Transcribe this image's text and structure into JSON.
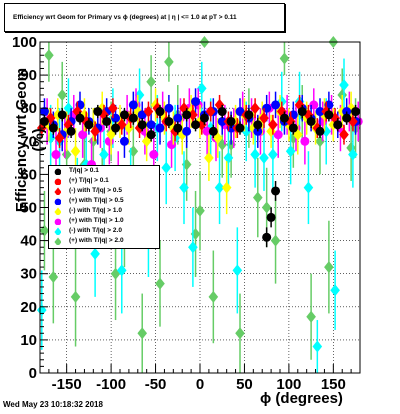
{
  "title": "Efficiency wrt Geom for Primary vs ϕ (degrees) at | η | <= 1.0 at pT > 0.11",
  "timestamp": "Wed May 23 10:18:32 2018",
  "chart_data": {
    "type": "scatter",
    "xlabel": "ϕ (degrees)",
    "ylabel": "Efficiency wrt Geom (%)",
    "xlim": [
      -180,
      180
    ],
    "ylim": [
      0,
      100
    ],
    "x_ticks": [
      "-150",
      "-100",
      "-50",
      "0",
      "50",
      "100",
      "150"
    ],
    "y_ticks": [
      "0",
      "10",
      "20",
      "30",
      "40",
      "50",
      "60",
      "70",
      "80",
      "90",
      "100"
    ],
    "grid": true,
    "legend": [
      {
        "label": "T/|q| > 0.1",
        "color": "#000000",
        "marker": "circle"
      },
      {
        "label": "(+) T/|q| > 0.1",
        "color": "#ff0000",
        "marker": "circle"
      },
      {
        "label": "(-) with T/|q| > 0.5",
        "color": "#ff0000",
        "marker": "diamond"
      },
      {
        "label": "(+) with T/|q| > 0.5",
        "color": "#0000ff",
        "marker": "circle"
      },
      {
        "label": "(-) with T/|q| > 1.0",
        "color": "#ffff00",
        "marker": "diamond"
      },
      {
        "label": "(+) with T/|q| > 1.0",
        "color": "#ff00ff",
        "marker": "circle"
      },
      {
        "label": "(-) with T/|q| > 2.0",
        "color": "#00ffff",
        "marker": "diamond"
      },
      {
        "label": "(+) with T/|q| > 2.0",
        "color": "#66cc66",
        "marker": "diamond"
      }
    ],
    "series": [
      {
        "color": "#66cc66",
        "marker": "diamond",
        "x": [
          -175,
          -170,
          -165,
          -155,
          -150,
          -140,
          -130,
          -120,
          -110,
          -100,
          -95,
          -85,
          -75,
          -65,
          -55,
          -45,
          -35,
          -25,
          -15,
          -5,
          0,
          5,
          15,
          25,
          35,
          45,
          55,
          65,
          75,
          85,
          95,
          105,
          115,
          125,
          135,
          145,
          150,
          160,
          170,
          175
        ],
        "y": [
          43,
          96,
          29,
          84,
          66,
          23,
          63,
          70,
          55,
          73,
          30,
          44,
          67,
          12,
          88,
          27,
          94,
          78,
          63,
          42,
          49,
          100,
          23,
          69,
          69,
          12,
          77,
          53,
          50,
          40,
          95,
          71,
          78,
          17,
          70,
          32,
          100,
          84,
          68,
          74
        ],
        "err": [
          12,
          8,
          14,
          10,
          11,
          15,
          11,
          10,
          13,
          9,
          14,
          12,
          10,
          12,
          8,
          13,
          6,
          9,
          11,
          13,
          12,
          0,
          14,
          10,
          10,
          12,
          9,
          12,
          12,
          13,
          5,
          9,
          9,
          13,
          10,
          14,
          0,
          8,
          10,
          9
        ]
      },
      {
        "color": "#00ffff",
        "marker": "diamond",
        "x": [
          -178,
          -168,
          -158,
          -148,
          -138,
          -128,
          -118,
          -108,
          -98,
          -88,
          -78,
          -68,
          -58,
          -48,
          -38,
          -28,
          -18,
          -8,
          2,
          12,
          22,
          32,
          42,
          52,
          62,
          72,
          82,
          92,
          102,
          112,
          122,
          132,
          142,
          152,
          162,
          172
        ],
        "y": [
          19,
          71,
          70,
          80,
          53,
          63,
          36,
          66,
          77,
          31,
          57,
          84,
          41,
          74,
          62,
          71,
          56,
          38,
          86,
          74,
          56,
          65,
          31,
          73,
          66,
          65,
          66,
          82,
          67,
          82,
          56,
          8,
          73,
          25,
          87,
          66
        ],
        "err": [
          12,
          10,
          10,
          9,
          12,
          11,
          13,
          11,
          9,
          13,
          11,
          8,
          12,
          10,
          11,
          10,
          11,
          12,
          8,
          9,
          11,
          10,
          13,
          9,
          10,
          10,
          10,
          9,
          10,
          9,
          11,
          8,
          10,
          12,
          8,
          10
        ]
      },
      {
        "color": "#ff00ff",
        "marker": "circle",
        "x": [
          -172,
          -162,
          -152,
          -142,
          -132,
          -122,
          -112,
          -102,
          -92,
          -82,
          -72,
          -62,
          -52,
          -42,
          -32,
          -22,
          -12,
          -2,
          8,
          18,
          28,
          38,
          48,
          58,
          68,
          78,
          88,
          98,
          108,
          118,
          128,
          138,
          148,
          158,
          168,
          178
        ],
        "y": [
          76,
          66,
          72,
          78,
          72,
          63,
          74,
          70,
          59,
          78,
          81,
          73,
          66,
          79,
          69,
          77,
          80,
          81,
          73,
          71,
          75,
          74,
          79,
          77,
          73,
          80,
          72,
          78,
          74,
          70,
          81,
          76,
          78,
          74,
          79,
          76
        ],
        "err": [
          7,
          8,
          7,
          6,
          7,
          8,
          6,
          7,
          8,
          6,
          5,
          7,
          8,
          6,
          7,
          6,
          6,
          5,
          7,
          7,
          6,
          6,
          6,
          6,
          7,
          5,
          7,
          6,
          7,
          7,
          5,
          6,
          6,
          7,
          6,
          6
        ]
      },
      {
        "color": "#ffff00",
        "marker": "diamond",
        "x": [
          -170,
          -160,
          -150,
          -140,
          -130,
          -120,
          -110,
          -100,
          -90,
          -80,
          -70,
          -60,
          -50,
          -40,
          -30,
          -20,
          -10,
          0,
          10,
          20,
          30,
          40,
          50,
          60,
          70,
          80,
          90,
          100,
          110,
          120,
          130,
          140,
          150,
          160,
          170
        ],
        "y": [
          75,
          78,
          73,
          67,
          78,
          75,
          80,
          72,
          76,
          74,
          79,
          70,
          81,
          77,
          74,
          72,
          79,
          76,
          65,
          71,
          56,
          76,
          78,
          74,
          77,
          73,
          79,
          75,
          72,
          77,
          74,
          78,
          75,
          79,
          80
        ],
        "err": [
          5,
          5,
          6,
          7,
          5,
          5,
          5,
          6,
          5,
          5,
          5,
          6,
          5,
          5,
          5,
          6,
          5,
          5,
          7,
          6,
          8,
          5,
          5,
          5,
          5,
          5,
          5,
          5,
          6,
          5,
          5,
          5,
          5,
          5,
          5
        ]
      },
      {
        "color": "#0000ff",
        "marker": "circle",
        "x": [
          -175,
          -165,
          -155,
          -145,
          -135,
          -125,
          -115,
          -105,
          -95,
          -85,
          -75,
          -65,
          -55,
          -45,
          -35,
          -25,
          -15,
          -5,
          5,
          15,
          25,
          35,
          45,
          55,
          65,
          75,
          85,
          95,
          105,
          115,
          125,
          135,
          145,
          155,
          165,
          175
        ],
        "y": [
          79,
          75,
          72,
          76,
          81,
          76,
          74,
          79,
          77,
          70,
          81,
          78,
          75,
          74,
          80,
          77,
          73,
          82,
          78,
          79,
          76,
          74,
          79,
          77,
          73,
          80,
          81,
          76,
          78,
          80,
          77,
          79,
          81,
          75,
          79,
          76
        ],
        "err": [
          4,
          4,
          5,
          4,
          4,
          4,
          5,
          4,
          4,
          5,
          4,
          4,
          4,
          5,
          4,
          4,
          5,
          4,
          4,
          4,
          4,
          5,
          4,
          4,
          5,
          4,
          4,
          4,
          4,
          4,
          4,
          4,
          4,
          4,
          4,
          4
        ]
      },
      {
        "color": "#ff0000",
        "marker": "diamond",
        "x": [
          -178,
          -168,
          -158,
          -148,
          -138,
          -128,
          -118,
          -108,
          -98,
          -88,
          -78,
          -68,
          -58,
          -48,
          -38,
          -28,
          -18,
          -8,
          2,
          12,
          22,
          32,
          42,
          52,
          62,
          72,
          82,
          92,
          102,
          112,
          122,
          132,
          142,
          152,
          162,
          172
        ],
        "y": [
          74,
          77,
          71,
          75,
          79,
          76,
          73,
          78,
          80,
          75,
          77,
          74,
          79,
          80,
          76,
          73,
          80,
          78,
          75,
          79,
          81,
          76,
          74,
          78,
          80,
          77,
          75,
          79,
          76,
          81,
          78,
          74,
          79,
          77,
          72,
          76
        ],
        "err": [
          3,
          3,
          3,
          3,
          3,
          3,
          3,
          3,
          3,
          3,
          3,
          3,
          3,
          3,
          3,
          3,
          3,
          3,
          3,
          3,
          3,
          3,
          3,
          3,
          3,
          3,
          3,
          3,
          3,
          3,
          3,
          3,
          3,
          3,
          3,
          3
        ]
      },
      {
        "color": "#000000",
        "marker": "circle",
        "x": [
          -175,
          -165,
          -155,
          -145,
          -135,
          -125,
          -115,
          -105,
          -95,
          -85,
          -75,
          -65,
          -55,
          -45,
          -35,
          -25,
          -15,
          -5,
          5,
          15,
          25,
          35,
          45,
          55,
          65,
          75,
          80,
          85,
          95,
          105,
          115,
          125,
          135,
          145,
          155,
          165,
          175
        ],
        "y": [
          76,
          74,
          78,
          73,
          77,
          75,
          79,
          76,
          74,
          78,
          77,
          75,
          72,
          79,
          76,
          74,
          78,
          75,
          77,
          73,
          79,
          76,
          74,
          78,
          75,
          41,
          47,
          55,
          77,
          74,
          79,
          76,
          73,
          78,
          75,
          77,
          79
        ],
        "err": [
          2,
          2,
          2,
          2,
          2,
          2,
          2,
          2,
          2,
          2,
          2,
          2,
          2,
          2,
          2,
          2,
          2,
          2,
          2,
          2,
          2,
          2,
          2,
          2,
          2,
          3,
          3,
          3,
          2,
          2,
          2,
          2,
          2,
          2,
          2,
          2,
          2
        ]
      }
    ]
  }
}
